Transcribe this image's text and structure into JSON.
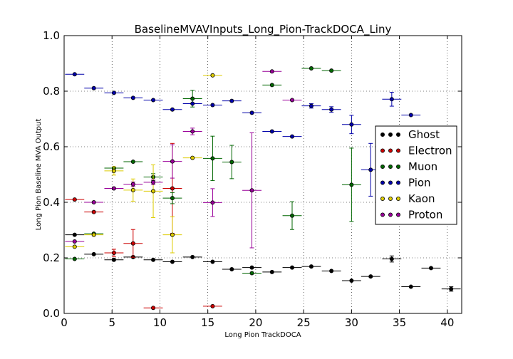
{
  "chart_data": {
    "type": "scatter",
    "title": "BaselineMVAVInputs_Long_Pion-TrackDOCA_Liny",
    "xlabel": "Long Pion TrackDOCA",
    "ylabel": "Long Pion Baseline MVA Output",
    "xlim": [
      0,
      41.5
    ],
    "ylim": [
      0,
      1.0
    ],
    "xticks": [
      "0",
      "5",
      "10",
      "15",
      "20",
      "25",
      "30",
      "35",
      "40"
    ],
    "yticks": [
      "0.0",
      "0.2",
      "0.4",
      "0.6",
      "0.8",
      "1.0"
    ],
    "grid": true,
    "legend_position": "right",
    "series": [
      {
        "name": "Ghost",
        "color": "#000000",
        "points": [
          [
            1.1,
            0.283,
            1.0,
            0.003
          ],
          [
            3.1,
            0.213,
            1.0,
            0.003
          ],
          [
            5.2,
            0.193,
            1.0,
            0.003
          ],
          [
            7.2,
            0.203,
            1.0,
            0.003
          ],
          [
            9.3,
            0.193,
            1.0,
            0.003
          ],
          [
            11.3,
            0.186,
            1.0,
            0.003
          ],
          [
            13.4,
            0.203,
            1.0,
            0.003
          ],
          [
            15.5,
            0.186,
            1.0,
            0.003
          ],
          [
            17.5,
            0.159,
            1.0,
            0.003
          ],
          [
            19.6,
            0.165,
            1.0,
            0.003
          ],
          [
            21.7,
            0.149,
            1.0,
            0.003
          ],
          [
            23.8,
            0.165,
            1.0,
            0.003
          ],
          [
            25.8,
            0.169,
            1.0,
            0.003
          ],
          [
            27.9,
            0.153,
            1.0,
            0.003
          ],
          [
            30.0,
            0.118,
            1.0,
            0.003
          ],
          [
            32.0,
            0.133,
            1.0,
            0.003
          ],
          [
            34.2,
            0.196,
            1.0,
            0.011
          ],
          [
            36.2,
            0.096,
            1.0,
            0.005
          ],
          [
            38.3,
            0.163,
            1.0,
            0.006
          ],
          [
            40.4,
            0.088,
            1.0,
            0.008
          ]
        ]
      },
      {
        "name": "Electron",
        "color": "#cc0000",
        "points": [
          [
            1.1,
            0.41,
            1.0,
            0.005
          ],
          [
            3.1,
            0.365,
            1.0,
            0.006
          ],
          [
            5.2,
            0.218,
            1.0,
            0.013
          ],
          [
            7.2,
            0.252,
            1.0,
            0.05
          ],
          [
            9.3,
            0.02,
            1.0,
            0.004
          ],
          [
            11.3,
            0.45,
            1.0,
            0.162
          ],
          [
            15.5,
            0.026,
            1.0,
            0.004
          ]
        ]
      },
      {
        "name": "Muon",
        "color": "#006600",
        "points": [
          [
            1.1,
            0.196,
            1.0,
            0.003
          ],
          [
            3.1,
            0.287,
            1.0,
            0.004
          ],
          [
            5.2,
            0.523,
            1.0,
            0.006
          ],
          [
            7.2,
            0.546,
            1.0,
            0.006
          ],
          [
            9.3,
            0.491,
            1.0,
            0.012
          ],
          [
            11.3,
            0.415,
            1.0,
            0.02
          ],
          [
            13.4,
            0.773,
            1.0,
            0.03
          ],
          [
            15.5,
            0.558,
            1.0,
            0.08
          ],
          [
            17.5,
            0.545,
            1.0,
            0.06
          ],
          [
            19.6,
            0.145,
            1.0,
            0.004
          ],
          [
            21.7,
            0.822,
            1.0,
            0.004
          ],
          [
            23.8,
            0.352,
            1.0,
            0.05
          ],
          [
            25.8,
            0.882,
            1.0,
            0.004
          ],
          [
            27.9,
            0.874,
            1.0,
            0.004
          ],
          [
            30.0,
            0.463,
            1.0,
            0.132
          ]
        ]
      },
      {
        "name": "Pion",
        "color": "#0000aa",
        "points": [
          [
            1.1,
            0.861,
            1.0,
            0.002
          ],
          [
            3.1,
            0.811,
            1.0,
            0.002
          ],
          [
            5.2,
            0.794,
            1.0,
            0.002
          ],
          [
            7.2,
            0.776,
            1.0,
            0.002
          ],
          [
            9.3,
            0.768,
            1.0,
            0.002
          ],
          [
            11.3,
            0.734,
            1.0,
            0.002
          ],
          [
            13.4,
            0.755,
            1.0,
            0.002
          ],
          [
            15.5,
            0.75,
            1.0,
            0.002
          ],
          [
            17.5,
            0.765,
            1.0,
            0.002
          ],
          [
            19.6,
            0.722,
            1.0,
            0.002
          ],
          [
            21.7,
            0.655,
            1.0,
            0.003
          ],
          [
            23.8,
            0.637,
            1.0,
            0.003
          ],
          [
            25.8,
            0.747,
            1.0,
            0.008
          ],
          [
            27.9,
            0.734,
            1.0,
            0.01
          ],
          [
            30.0,
            0.68,
            1.0,
            0.033
          ],
          [
            32.0,
            0.517,
            1.0,
            0.095
          ],
          [
            34.2,
            0.771,
            1.0,
            0.025
          ],
          [
            36.2,
            0.714,
            1.0,
            0.005
          ]
        ]
      },
      {
        "name": "Kaon",
        "color": "#ddcc00",
        "points": [
          [
            1.1,
            0.24,
            1.0,
            0.003
          ],
          [
            3.1,
            0.283,
            1.0,
            0.004
          ],
          [
            5.2,
            0.513,
            1.0,
            0.015
          ],
          [
            7.2,
            0.444,
            1.0,
            0.04
          ],
          [
            9.3,
            0.44,
            1.0,
            0.095
          ],
          [
            11.3,
            0.283,
            1.0,
            0.065
          ],
          [
            13.4,
            0.56,
            1.0,
            0.005
          ],
          [
            15.5,
            0.857,
            1.0,
            0.004
          ]
        ]
      },
      {
        "name": "Proton",
        "color": "#990099",
        "points": [
          [
            1.1,
            0.259,
            1.0,
            0.003
          ],
          [
            3.1,
            0.4,
            1.0,
            0.004
          ],
          [
            5.2,
            0.45,
            1.0,
            0.005
          ],
          [
            7.2,
            0.465,
            1.0,
            0.008
          ],
          [
            9.3,
            0.472,
            1.0,
            0.008
          ],
          [
            11.3,
            0.547,
            1.0,
            0.06
          ],
          [
            13.4,
            0.655,
            1.0,
            0.012
          ],
          [
            15.5,
            0.399,
            1.0,
            0.05
          ],
          [
            19.6,
            0.443,
            1.0,
            0.207
          ],
          [
            21.7,
            0.871,
            1.0,
            0.004
          ],
          [
            23.8,
            0.768,
            1.0,
            0.004
          ]
        ]
      }
    ]
  }
}
